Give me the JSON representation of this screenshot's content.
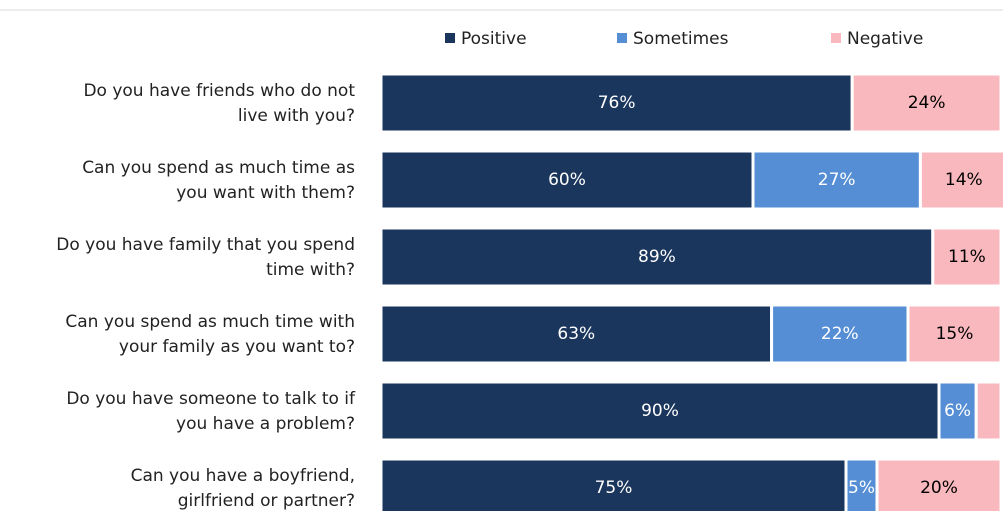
{
  "chart_data": {
    "type": "stacked-bar-horizontal",
    "categories": [
      [
        "Do you have friends who do not",
        "live with you?"
      ],
      [
        "Can you spend as much time as",
        "you want with them?"
      ],
      [
        "Do you have family that you spend",
        "time with?"
      ],
      [
        "Can you spend as much time with",
        "your family as you want to?"
      ],
      [
        "Do you have someone to talk to if",
        "you have a problem?"
      ],
      [
        "Can you have a boyfriend,",
        "girlfriend or partner?"
      ]
    ],
    "series": [
      {
        "name": "Positive",
        "color": "#1b365d",
        "label_color": "#ffffff",
        "values": [
          76,
          60,
          89,
          63,
          90,
          75
        ],
        "value_labels": [
          "76%",
          "60%",
          "89%",
          "63%",
          "90%",
          "75%"
        ]
      },
      {
        "name": "Sometimes",
        "color": "#558ed5",
        "label_color": "#ffffff",
        "values": [
          null,
          27,
          null,
          22,
          6,
          5
        ],
        "value_labels": [
          null,
          "27%",
          null,
          "22%",
          "6%",
          "5%"
        ]
      },
      {
        "name": "Negative",
        "color": "#f8b8bd",
        "label_color": "#000000",
        "values": [
          24,
          14,
          11,
          15,
          4,
          20
        ],
        "value_labels": [
          "24%",
          "14%",
          "11%",
          "15%",
          null,
          "20%"
        ]
      }
    ],
    "xlim": [
      0,
      100
    ],
    "legend": "top"
  }
}
